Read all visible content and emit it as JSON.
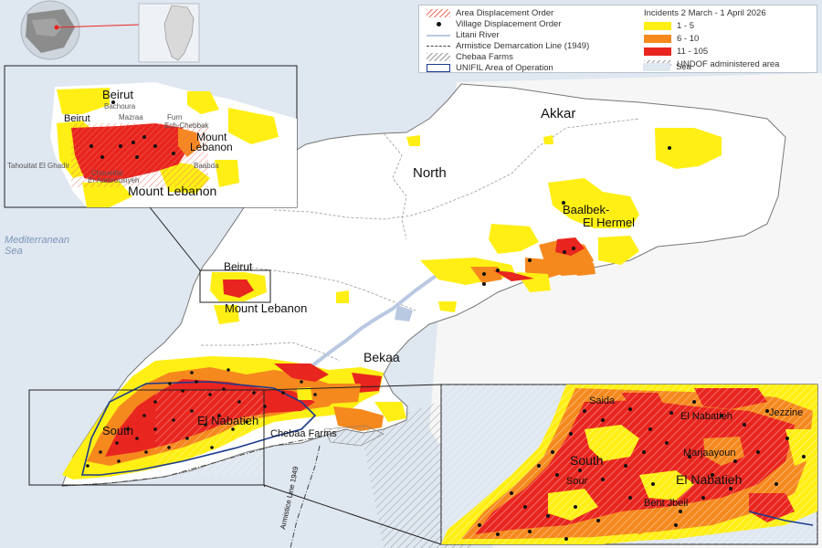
{
  "legend": {
    "left_items": [
      {
        "label": "Area Displacement Order",
        "symbol": "hatch-red"
      },
      {
        "label": "Village Displacement Order",
        "symbol": "dot-black"
      },
      {
        "label": "Litani River",
        "symbol": "line-blue"
      },
      {
        "label": "Armistice Demarcation Line (1949)",
        "symbol": "line-dashdot"
      },
      {
        "label": "Chebaa Farms",
        "symbol": "hatch-grey"
      },
      {
        "label": "UNIFIL Area of Operation",
        "symbol": "box-navy"
      }
    ],
    "incidents_title": "Incidents 2 March - 1 April 2026",
    "incident_classes": [
      {
        "label": "1 - 5",
        "color": "#ffef14"
      },
      {
        "label": "6 - 10",
        "color": "#f5891e"
      },
      {
        "label": "11 - 105",
        "color": "#e8251e"
      }
    ],
    "other_items": [
      {
        "label": "UNDOF administered area",
        "symbol": "hatch-grey"
      },
      {
        "label": "Sea",
        "symbol": "fill-sea"
      }
    ]
  },
  "map_labels": {
    "sea": "Mediterranean Sea",
    "akkar": "Akkar",
    "north": "North",
    "baalbek": "Baalbek-El Hermel",
    "beirut": "Beirut",
    "mount_lebanon": "Mount Lebanon",
    "bekaa": "Bekaa",
    "south": "South",
    "el_nabatieh": "El Nabatieh",
    "chebaa": "Chebaa Farms",
    "armistice": "Armistice Line 1949"
  },
  "inset_beirut": {
    "beirut": "Beirut",
    "bachoura": "Bachoura",
    "beirut_west": "Beirut",
    "mazraa": "Mazraa",
    "furn": "Furn Ech-Chebbak",
    "mount_lebanon_inner": "Mount Lebanon",
    "baabda": "Baabda",
    "tahouitat": "Tahouitat El Ghadir",
    "choueifat": "Choueifat",
    "el_aamrousiyeh": "El-Aamrousiyeh",
    "mount_lebanon": "Mount Lebanon"
  },
  "inset_south": {
    "saida": "Saida",
    "el_nabatieh": "El Nabatieh",
    "jezzine": "Jezzine",
    "south": "South",
    "marjaayoun": "Marjaayoun",
    "sour": "Sour",
    "el_nabatieh2": "El Nabatieh",
    "bent_jbeil": "Bent Jbeil"
  },
  "colors": {
    "sea": "#dfe7f1",
    "land": "#ffffff",
    "low": "#ffef14",
    "mid": "#f5891e",
    "high": "#e8251e",
    "river": "#b9c9e2",
    "unifil": "#1b3a8c",
    "border": "#555555"
  }
}
